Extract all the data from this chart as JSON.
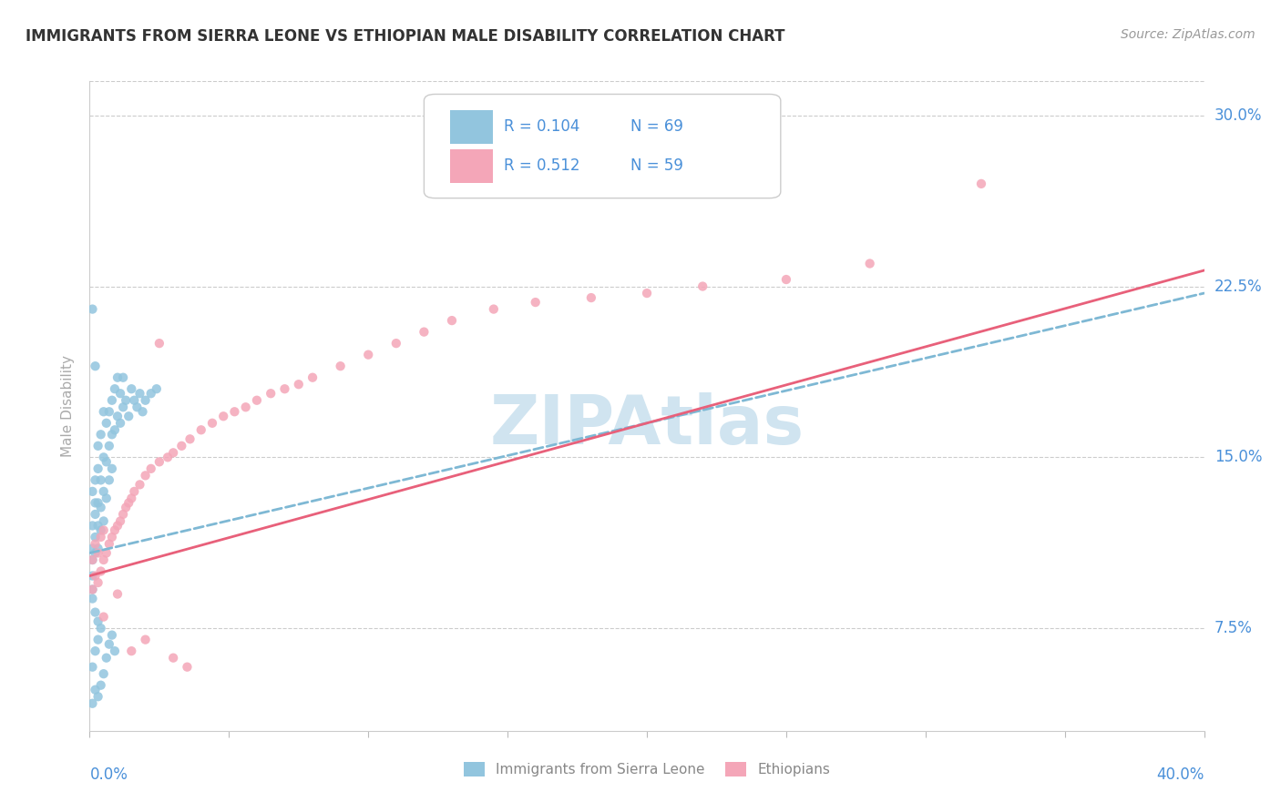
{
  "title": "IMMIGRANTS FROM SIERRA LEONE VS ETHIOPIAN MALE DISABILITY CORRELATION CHART",
  "source": "Source: ZipAtlas.com",
  "ylabel": "Male Disability",
  "yticks": [
    0.075,
    0.15,
    0.225,
    0.3
  ],
  "ytick_labels": [
    "7.5%",
    "15.0%",
    "22.5%",
    "30.0%"
  ],
  "xmin": 0.0,
  "xmax": 0.4,
  "ymin": 0.03,
  "ymax": 0.315,
  "R_blue": 0.104,
  "N_blue": 69,
  "R_pink": 0.512,
  "N_pink": 59,
  "color_blue": "#92c5de",
  "color_blue_line": "#7eb8d4",
  "color_pink": "#f4a6b8",
  "color_pink_line": "#e8607a",
  "watermark": "ZIPAtlas",
  "watermark_color": "#d0e4f0",
  "bottom_legend_blue": "Immigrants from Sierra Leone",
  "bottom_legend_pink": "Ethiopians",
  "sl_x": [
    0.001,
    0.001,
    0.001,
    0.001,
    0.001,
    0.002,
    0.002,
    0.002,
    0.002,
    0.002,
    0.003,
    0.003,
    0.003,
    0.003,
    0.003,
    0.004,
    0.004,
    0.004,
    0.004,
    0.005,
    0.005,
    0.005,
    0.005,
    0.006,
    0.006,
    0.006,
    0.007,
    0.007,
    0.007,
    0.008,
    0.008,
    0.008,
    0.009,
    0.009,
    0.01,
    0.01,
    0.011,
    0.011,
    0.012,
    0.012,
    0.013,
    0.014,
    0.015,
    0.016,
    0.017,
    0.018,
    0.019,
    0.02,
    0.022,
    0.024,
    0.001,
    0.002,
    0.003,
    0.004,
    0.001,
    0.002,
    0.001,
    0.002,
    0.003,
    0.001,
    0.005,
    0.006,
    0.007,
    0.008,
    0.009,
    0.002,
    0.003,
    0.004,
    0.001
  ],
  "sl_y": [
    0.105,
    0.12,
    0.135,
    0.11,
    0.098,
    0.13,
    0.115,
    0.125,
    0.108,
    0.14,
    0.155,
    0.13,
    0.12,
    0.145,
    0.11,
    0.16,
    0.14,
    0.128,
    0.118,
    0.17,
    0.15,
    0.135,
    0.122,
    0.165,
    0.148,
    0.132,
    0.17,
    0.155,
    0.14,
    0.175,
    0.16,
    0.145,
    0.18,
    0.162,
    0.185,
    0.168,
    0.178,
    0.165,
    0.185,
    0.172,
    0.175,
    0.168,
    0.18,
    0.175,
    0.172,
    0.178,
    0.17,
    0.175,
    0.178,
    0.18,
    0.058,
    0.065,
    0.07,
    0.075,
    0.215,
    0.19,
    0.088,
    0.082,
    0.078,
    0.092,
    0.055,
    0.062,
    0.068,
    0.072,
    0.065,
    0.048,
    0.045,
    0.05,
    0.042
  ],
  "eth_x": [
    0.001,
    0.001,
    0.002,
    0.002,
    0.003,
    0.003,
    0.004,
    0.004,
    0.005,
    0.005,
    0.006,
    0.007,
    0.008,
    0.009,
    0.01,
    0.011,
    0.012,
    0.013,
    0.014,
    0.015,
    0.016,
    0.018,
    0.02,
    0.022,
    0.025,
    0.028,
    0.03,
    0.033,
    0.036,
    0.04,
    0.044,
    0.048,
    0.052,
    0.056,
    0.06,
    0.065,
    0.07,
    0.075,
    0.08,
    0.09,
    0.1,
    0.11,
    0.12,
    0.13,
    0.145,
    0.16,
    0.18,
    0.2,
    0.22,
    0.25,
    0.28,
    0.32,
    0.005,
    0.01,
    0.015,
    0.02,
    0.025,
    0.03,
    0.035
  ],
  "eth_y": [
    0.105,
    0.092,
    0.112,
    0.098,
    0.108,
    0.095,
    0.115,
    0.1,
    0.118,
    0.105,
    0.108,
    0.112,
    0.115,
    0.118,
    0.12,
    0.122,
    0.125,
    0.128,
    0.13,
    0.132,
    0.135,
    0.138,
    0.142,
    0.145,
    0.148,
    0.15,
    0.152,
    0.155,
    0.158,
    0.162,
    0.165,
    0.168,
    0.17,
    0.172,
    0.175,
    0.178,
    0.18,
    0.182,
    0.185,
    0.19,
    0.195,
    0.2,
    0.205,
    0.21,
    0.215,
    0.218,
    0.22,
    0.222,
    0.225,
    0.228,
    0.235,
    0.27,
    0.08,
    0.09,
    0.065,
    0.07,
    0.2,
    0.062,
    0.058
  ],
  "trendline_blue_x0": 0.0,
  "trendline_blue_y0": 0.108,
  "trendline_blue_x1": 0.4,
  "trendline_blue_y1": 0.222,
  "trendline_pink_x0": 0.0,
  "trendline_pink_y0": 0.098,
  "trendline_pink_x1": 0.4,
  "trendline_pink_y1": 0.232
}
